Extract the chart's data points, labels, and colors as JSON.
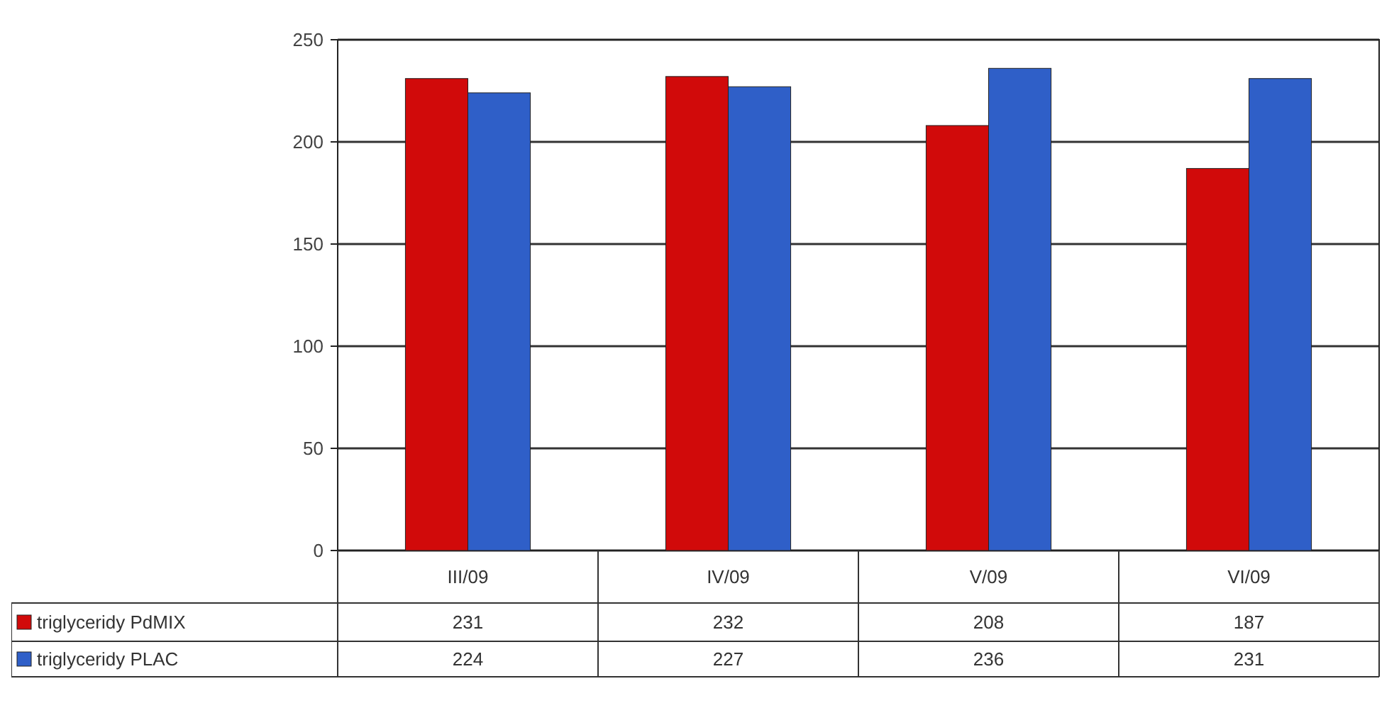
{
  "chart_data": {
    "type": "bar",
    "categories": [
      "III/09",
      "IV/09",
      "V/09",
      "VI/09"
    ],
    "series": [
      {
        "name": "triglyceridy PdMIX",
        "color": "#d10a0a",
        "values": [
          231,
          232,
          208,
          187
        ]
      },
      {
        "name": "triglyceridy PLAC",
        "color": "#2f5fc8",
        "values": [
          224,
          227,
          236,
          231
        ]
      }
    ],
    "ylim": [
      0,
      250
    ],
    "yticks": [
      0,
      50,
      100,
      150,
      200,
      250
    ],
    "grid": "y",
    "data_labels": true,
    "legend": "bottom left"
  }
}
